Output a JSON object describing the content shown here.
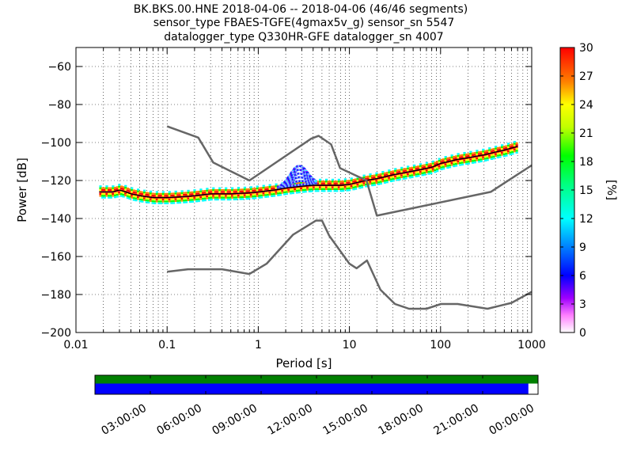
{
  "chart_data": {
    "type": "heatmap",
    "title_lines": [
      "BK.BKS.00.HNE   2018-04-06 -- 2018-04-06  (46/46 segments)",
      "sensor_type FBAES-TGFE(4gmax5v_g) sensor_sn 5547",
      "datalogger_type Q330HR-GFE datalogger_sn 4007"
    ],
    "xlabel": "Period [s]",
    "ylabel": "Power [dB]",
    "x_scale": "log",
    "xlim": [
      0.01,
      1000
    ],
    "ylim": [
      -200,
      -50
    ],
    "x_ticks": [
      0.01,
      0.1,
      1,
      10,
      100,
      1000
    ],
    "x_tick_labels": [
      "0.01",
      "0.1",
      "1",
      "10",
      "100",
      "1000"
    ],
    "y_ticks": [
      -200,
      -180,
      -160,
      -140,
      -120,
      -100,
      -80,
      -60
    ],
    "y_tick_labels": [
      "−200",
      "−180",
      "−160",
      "−140",
      "−120",
      "−100",
      "−80",
      "−60"
    ],
    "grid": true,
    "colorbar": {
      "label": "[%]",
      "range": [
        0,
        30
      ],
      "ticks": [
        0,
        3,
        6,
        9,
        12,
        15,
        18,
        21,
        24,
        27,
        30
      ],
      "tick_labels": [
        "0",
        "3",
        "6",
        "9",
        "12",
        "15",
        "18",
        "21",
        "24",
        "27",
        "30"
      ]
    },
    "psd_mode_curve": {
      "period": [
        0.018,
        0.025,
        0.03,
        0.035,
        0.04,
        0.05,
        0.07,
        0.1,
        0.15,
        0.2,
        0.3,
        0.5,
        0.8,
        1.0,
        1.5,
        2.0,
        3.0,
        4.0,
        5.0,
        6.0,
        8.0,
        10,
        15,
        20,
        30,
        50,
        80,
        100,
        150,
        200,
        300,
        400,
        500,
        700
      ],
      "power": [
        -126,
        -126,
        -125,
        -126,
        -127,
        -128,
        -129,
        -129,
        -128.5,
        -128,
        -127,
        -127,
        -126.5,
        -126,
        -125,
        -124,
        -123,
        -122.5,
        -122.5,
        -122.5,
        -122.5,
        -122,
        -120,
        -119,
        -117,
        -115,
        -113,
        -111,
        -109,
        -108,
        -106.5,
        -105,
        -104,
        -102
      ]
    },
    "noise_model_high": {
      "period": [
        0.1,
        0.22,
        0.32,
        0.8,
        3.8,
        4.6,
        6.3,
        7.9,
        15.4,
        20,
        354.8,
        1000
      ],
      "power": [
        -91.5,
        -97.4,
        -110.5,
        -120,
        -98,
        -96.5,
        -101,
        -113.5,
        -120,
        -138.5,
        -126,
        -112
      ]
    },
    "noise_model_low": {
      "period": [
        0.1,
        0.17,
        0.4,
        0.8,
        1.24,
        2.4,
        4.3,
        5.0,
        6.0,
        10,
        12,
        15.6,
        21.9,
        31.6,
        45,
        70,
        101,
        154,
        328,
        600,
        1000
      ],
      "power": [
        -168,
        -166.7,
        -166.7,
        -169.2,
        -163.7,
        -148.6,
        -141.1,
        -141.1,
        -149,
        -163.8,
        -166.2,
        -162.1,
        -177.5,
        -185,
        -187.5,
        -187.5,
        -185,
        -185,
        -187.5,
        -184.4,
        -178.6
      ]
    }
  },
  "timeline": {
    "tick_labels": [
      "03:00:00",
      "06:00:00",
      "09:00:00",
      "12:00:00",
      "15:00:00",
      "18:00:00",
      "21:00:00",
      "00:00:00"
    ],
    "data_coverage_fraction": 0.979,
    "segment_coverage_fraction": 1.0,
    "colors": {
      "segment_bar": "#008000",
      "data_bar": "#0000ff"
    }
  },
  "colors": {
    "noise_model": "#666666",
    "mode_curve": "#000000"
  }
}
